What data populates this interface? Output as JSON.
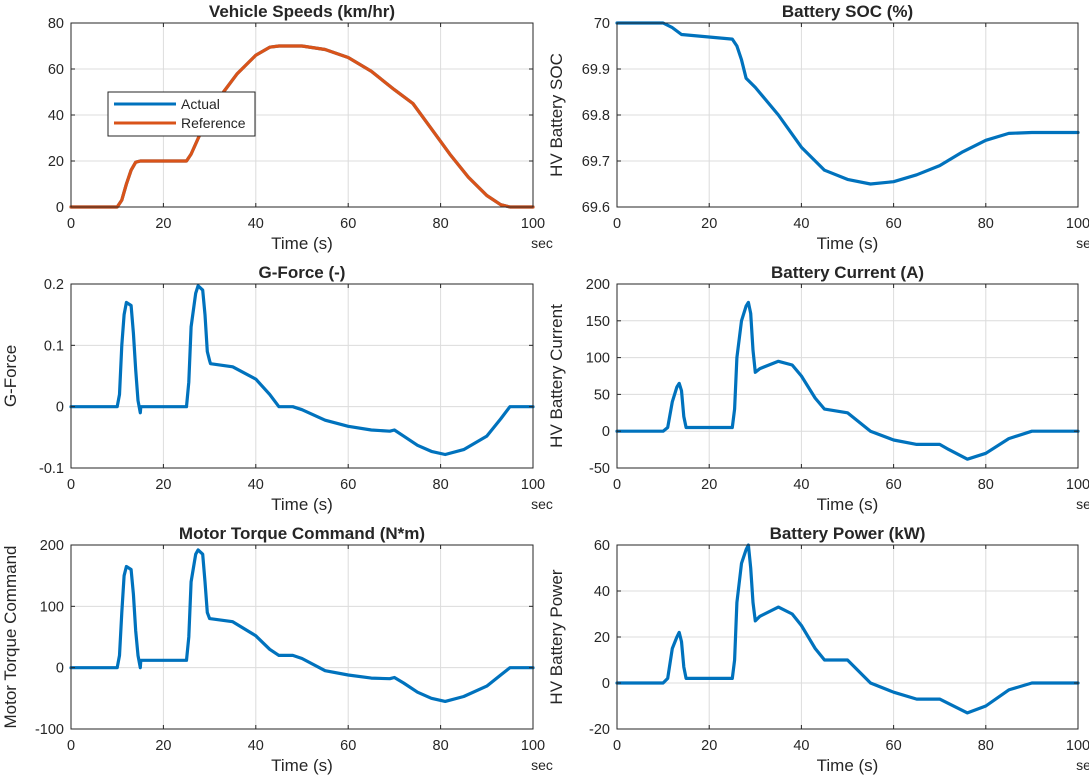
{
  "figure": {
    "colors": {
      "blue": "#0072BD",
      "orange": "#D95319"
    }
  },
  "chart_data": [
    {
      "id": "vehicle-speeds",
      "type": "line",
      "title": "Vehicle Speeds (km/hr)",
      "xlabel": "Time (s)",
      "ylabel": "",
      "xunit": "sec",
      "xlim": [
        0,
        100
      ],
      "ylim": [
        0,
        80
      ],
      "xticks": [
        0,
        20,
        40,
        60,
        80,
        100
      ],
      "yticks": [
        0,
        20,
        40,
        60,
        80
      ],
      "grid": true,
      "legend": "upper-left",
      "series": [
        {
          "name": "Actual",
          "color": "#0072BD",
          "points": [
            [
              0,
              0
            ],
            [
              10,
              0
            ],
            [
              11,
              3
            ],
            [
              12,
              10
            ],
            [
              13,
              16
            ],
            [
              14,
              19.5
            ],
            [
              15,
              20
            ],
            [
              25,
              20
            ],
            [
              26,
              23
            ],
            [
              28,
              32
            ],
            [
              30,
              40
            ],
            [
              33,
              50
            ],
            [
              36,
              58
            ],
            [
              40,
              66
            ],
            [
              43,
              69.5
            ],
            [
              45,
              70
            ],
            [
              50,
              70
            ],
            [
              55,
              68.5
            ],
            [
              60,
              65
            ],
            [
              65,
              59
            ],
            [
              70,
              51
            ],
            [
              74,
              45
            ],
            [
              78,
              34
            ],
            [
              82,
              23
            ],
            [
              86,
              13
            ],
            [
              90,
              5
            ],
            [
              93,
              1
            ],
            [
              95,
              0
            ],
            [
              100,
              0
            ]
          ]
        },
        {
          "name": "Reference",
          "color": "#D95319",
          "points": [
            [
              0,
              0
            ],
            [
              10,
              0
            ],
            [
              11,
              3
            ],
            [
              12,
              10
            ],
            [
              13,
              16
            ],
            [
              14,
              19.5
            ],
            [
              15,
              20
            ],
            [
              25,
              20
            ],
            [
              26,
              23
            ],
            [
              28,
              32
            ],
            [
              30,
              40
            ],
            [
              33,
              50
            ],
            [
              36,
              58
            ],
            [
              40,
              66
            ],
            [
              43,
              69.5
            ],
            [
              45,
              70
            ],
            [
              50,
              70
            ],
            [
              55,
              68.5
            ],
            [
              60,
              65
            ],
            [
              65,
              59
            ],
            [
              70,
              51
            ],
            [
              74,
              45
            ],
            [
              78,
              34
            ],
            [
              82,
              23
            ],
            [
              86,
              13
            ],
            [
              90,
              5
            ],
            [
              93,
              1
            ],
            [
              95,
              0
            ],
            [
              100,
              0
            ]
          ]
        }
      ]
    },
    {
      "id": "battery-soc",
      "type": "line",
      "title": "Battery SOC (%)",
      "xlabel": "Time (s)",
      "ylabel": "HV Battery SOC",
      "xunit": "sec",
      "xlim": [
        0,
        100
      ],
      "ylim": [
        69.6,
        70
      ],
      "xticks": [
        0,
        20,
        40,
        60,
        80,
        100
      ],
      "yticks": [
        69.6,
        69.7,
        69.8,
        69.9,
        70
      ],
      "grid": true,
      "series": [
        {
          "name": "",
          "color": "#0072BD",
          "points": [
            [
              0,
              70
            ],
            [
              10,
              70
            ],
            [
              12,
              69.99
            ],
            [
              14,
              69.975
            ],
            [
              25,
              69.965
            ],
            [
              26,
              69.95
            ],
            [
              27,
              69.92
            ],
            [
              28,
              69.88
            ],
            [
              30,
              69.86
            ],
            [
              35,
              69.8
            ],
            [
              40,
              69.73
            ],
            [
              45,
              69.68
            ],
            [
              50,
              69.66
            ],
            [
              55,
              69.65
            ],
            [
              60,
              69.655
            ],
            [
              65,
              69.67
            ],
            [
              70,
              69.69
            ],
            [
              75,
              69.72
            ],
            [
              80,
              69.745
            ],
            [
              85,
              69.76
            ],
            [
              90,
              69.762
            ],
            [
              100,
              69.762
            ]
          ]
        }
      ]
    },
    {
      "id": "g-force",
      "type": "line",
      "title": "G-Force (-)",
      "xlabel": "Time (s)",
      "ylabel": "G-Force",
      "xunit": "sec",
      "xlim": [
        0,
        100
      ],
      "ylim": [
        -0.1,
        0.2
      ],
      "xticks": [
        0,
        20,
        40,
        60,
        80,
        100
      ],
      "yticks": [
        -0.1,
        0,
        0.1,
        0.2
      ],
      "grid": true,
      "series": [
        {
          "name": "",
          "color": "#0072BD",
          "points": [
            [
              0,
              0
            ],
            [
              10,
              0
            ],
            [
              10.5,
              0.02
            ],
            [
              11,
              0.1
            ],
            [
              11.5,
              0.15
            ],
            [
              12,
              0.17
            ],
            [
              13,
              0.165
            ],
            [
              13.5,
              0.12
            ],
            [
              14,
              0.06
            ],
            [
              14.5,
              0.01
            ],
            [
              15,
              -0.01
            ],
            [
              15.1,
              0
            ],
            [
              25,
              0
            ],
            [
              25.5,
              0.04
            ],
            [
              26,
              0.13
            ],
            [
              27,
              0.185
            ],
            [
              27.5,
              0.197
            ],
            [
              28.5,
              0.19
            ],
            [
              29,
              0.15
            ],
            [
              29.5,
              0.09
            ],
            [
              30,
              0.075
            ],
            [
              30.2,
              0.07
            ],
            [
              35,
              0.065
            ],
            [
              40,
              0.045
            ],
            [
              43,
              0.02
            ],
            [
              45,
              0
            ],
            [
              48,
              0
            ],
            [
              50,
              -0.005
            ],
            [
              55,
              -0.022
            ],
            [
              60,
              -0.032
            ],
            [
              65,
              -0.038
            ],
            [
              69,
              -0.04
            ],
            [
              70,
              -0.038
            ],
            [
              72,
              -0.048
            ],
            [
              75,
              -0.063
            ],
            [
              78,
              -0.073
            ],
            [
              81,
              -0.078
            ],
            [
              85,
              -0.07
            ],
            [
              90,
              -0.048
            ],
            [
              93,
              -0.02
            ],
            [
              95,
              0
            ],
            [
              100,
              0
            ]
          ]
        }
      ]
    },
    {
      "id": "battery-current",
      "type": "line",
      "title": "Battery Current (A)",
      "xlabel": "Time (s)",
      "ylabel": "HV Battery Current",
      "xunit": "sec",
      "xlim": [
        0,
        100
      ],
      "ylim": [
        -50,
        200
      ],
      "xticks": [
        0,
        20,
        40,
        60,
        80,
        100
      ],
      "yticks": [
        -50,
        0,
        50,
        100,
        150,
        200
      ],
      "grid": true,
      "series": [
        {
          "name": "",
          "color": "#0072BD",
          "points": [
            [
              0,
              0
            ],
            [
              10,
              0
            ],
            [
              11,
              5
            ],
            [
              12,
              40
            ],
            [
              13,
              60
            ],
            [
              13.5,
              65
            ],
            [
              14,
              55
            ],
            [
              14.5,
              20
            ],
            [
              15,
              5
            ],
            [
              25,
              5
            ],
            [
              25.5,
              30
            ],
            [
              26,
              100
            ],
            [
              27,
              150
            ],
            [
              28,
              170
            ],
            [
              28.5,
              175
            ],
            [
              29,
              160
            ],
            [
              29.5,
              110
            ],
            [
              30,
              80
            ],
            [
              31,
              85
            ],
            [
              35,
              95
            ],
            [
              38,
              90
            ],
            [
              40,
              75
            ],
            [
              43,
              45
            ],
            [
              45,
              30
            ],
            [
              50,
              25
            ],
            [
              55,
              0
            ],
            [
              60,
              -12
            ],
            [
              65,
              -18
            ],
            [
              70,
              -18
            ],
            [
              72,
              -25
            ],
            [
              76,
              -38
            ],
            [
              80,
              -30
            ],
            [
              85,
              -10
            ],
            [
              90,
              0
            ],
            [
              100,
              0
            ]
          ]
        }
      ]
    },
    {
      "id": "motor-torque",
      "type": "line",
      "title": "Motor Torque Command (N*m)",
      "xlabel": "Time (s)",
      "ylabel": "Motor Torque Command",
      "xunit": "sec",
      "xlim": [
        0,
        100
      ],
      "ylim": [
        -100,
        200
      ],
      "xticks": [
        0,
        20,
        40,
        60,
        80,
        100
      ],
      "yticks": [
        -100,
        0,
        100,
        200
      ],
      "grid": true,
      "series": [
        {
          "name": "",
          "color": "#0072BD",
          "points": [
            [
              0,
              0
            ],
            [
              10,
              0
            ],
            [
              10.5,
              20
            ],
            [
              11,
              90
            ],
            [
              11.5,
              150
            ],
            [
              12,
              165
            ],
            [
              13,
              160
            ],
            [
              13.5,
              120
            ],
            [
              14,
              60
            ],
            [
              14.5,
              20
            ],
            [
              15,
              0
            ],
            [
              15.1,
              12
            ],
            [
              25,
              12
            ],
            [
              25.5,
              50
            ],
            [
              26,
              140
            ],
            [
              27,
              185
            ],
            [
              27.5,
              192
            ],
            [
              28.5,
              185
            ],
            [
              29,
              140
            ],
            [
              29.5,
              90
            ],
            [
              30,
              80
            ],
            [
              35,
              75
            ],
            [
              40,
              52
            ],
            [
              43,
              30
            ],
            [
              45,
              20
            ],
            [
              48,
              20
            ],
            [
              50,
              15
            ],
            [
              55,
              -5
            ],
            [
              60,
              -12
            ],
            [
              65,
              -17
            ],
            [
              69,
              -18
            ],
            [
              70,
              -16
            ],
            [
              72,
              -25
            ],
            [
              75,
              -40
            ],
            [
              78,
              -50
            ],
            [
              81,
              -55
            ],
            [
              85,
              -47
            ],
            [
              90,
              -30
            ],
            [
              93,
              -12
            ],
            [
              95,
              0
            ],
            [
              100,
              0
            ]
          ]
        }
      ]
    },
    {
      "id": "battery-power",
      "type": "line",
      "title": "Battery Power (kW)",
      "xlabel": "Time (s)",
      "ylabel": "HV Battery Power",
      "xunit": "sec",
      "xlim": [
        0,
        100
      ],
      "ylim": [
        -20,
        60
      ],
      "xticks": [
        0,
        20,
        40,
        60,
        80,
        100
      ],
      "yticks": [
        -20,
        0,
        20,
        40,
        60
      ],
      "grid": true,
      "series": [
        {
          "name": "",
          "color": "#0072BD",
          "points": [
            [
              0,
              0
            ],
            [
              10,
              0
            ],
            [
              11,
              2
            ],
            [
              12,
              15
            ],
            [
              13,
              20
            ],
            [
              13.5,
              22
            ],
            [
              14,
              18
            ],
            [
              14.5,
              7
            ],
            [
              15,
              2
            ],
            [
              25,
              2
            ],
            [
              25.5,
              10
            ],
            [
              26,
              35
            ],
            [
              27,
              52
            ],
            [
              28,
              58
            ],
            [
              28.5,
              60
            ],
            [
              29,
              50
            ],
            [
              29.5,
              35
            ],
            [
              30,
              27
            ],
            [
              31,
              29
            ],
            [
              35,
              33
            ],
            [
              38,
              30
            ],
            [
              40,
              25
            ],
            [
              43,
              15
            ],
            [
              45,
              10
            ],
            [
              50,
              10
            ],
            [
              55,
              0
            ],
            [
              60,
              -4
            ],
            [
              65,
              -7
            ],
            [
              70,
              -7
            ],
            [
              72,
              -9
            ],
            [
              76,
              -13
            ],
            [
              80,
              -10
            ],
            [
              85,
              -3
            ],
            [
              90,
              0
            ],
            [
              100,
              0
            ]
          ]
        }
      ]
    }
  ]
}
